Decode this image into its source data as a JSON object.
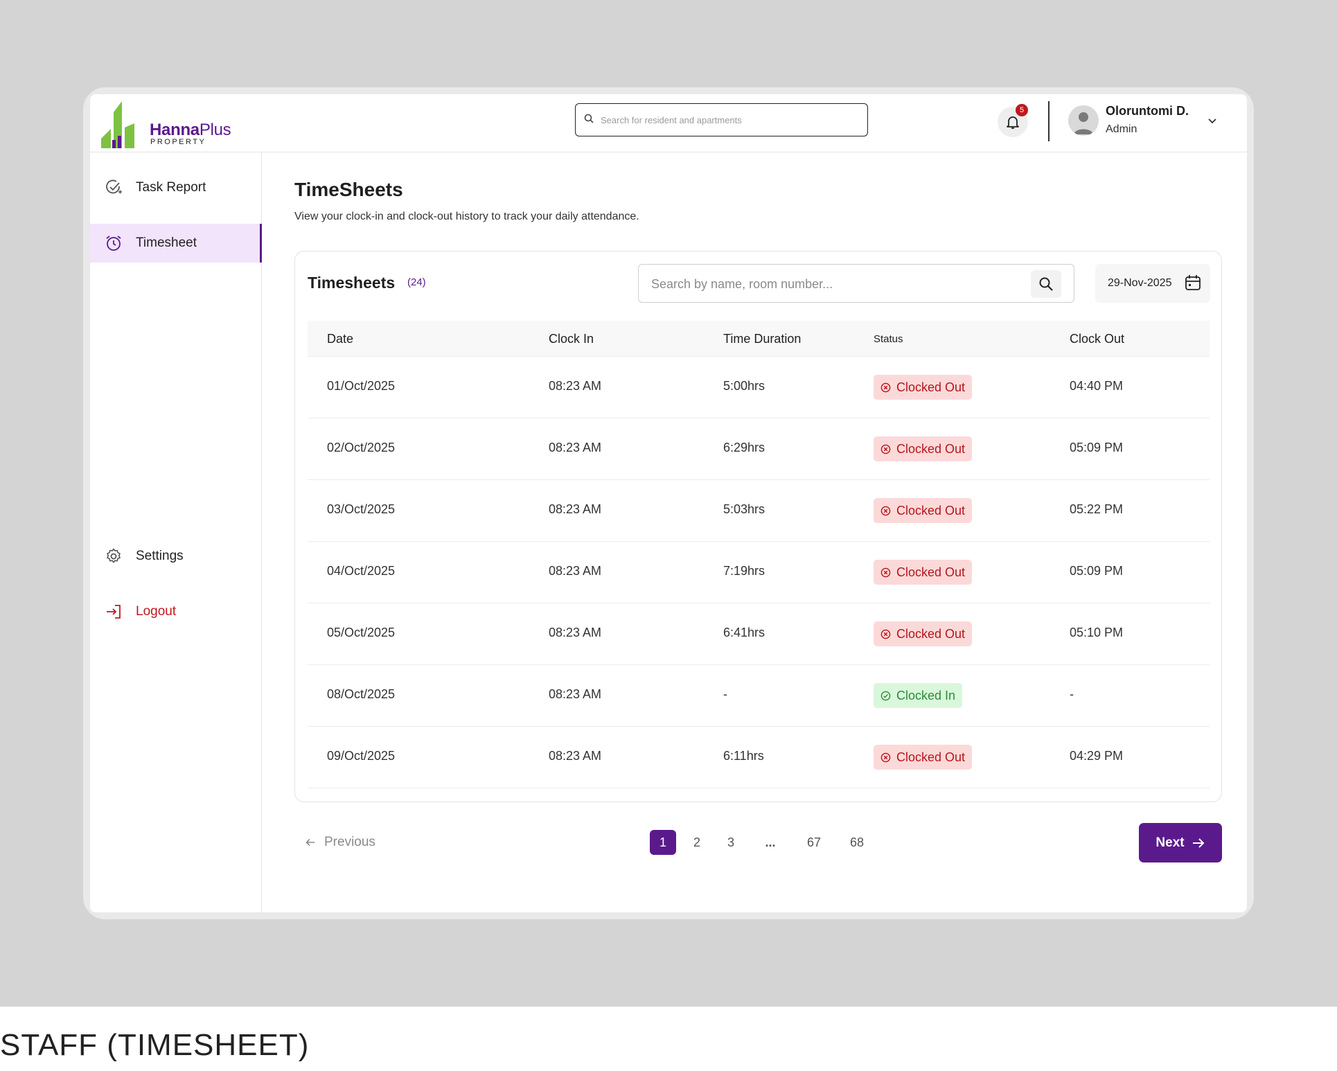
{
  "brand": {
    "name_bold": "Hanna",
    "name_rest": "Plus",
    "sub": "PROPERTY"
  },
  "header": {
    "search_placeholder": "Search for resident and apartments",
    "notification_count": "5",
    "user_name": "Oloruntomi D.",
    "user_role": "Admin"
  },
  "sidebar": {
    "items": [
      {
        "label": "Task Report",
        "icon": "task-check-icon"
      },
      {
        "label": "Timesheet",
        "icon": "alarm-clock-icon",
        "active": true
      }
    ],
    "bottom": [
      {
        "label": "Settings",
        "icon": "gear-icon"
      },
      {
        "label": "Logout",
        "icon": "logout-icon"
      }
    ]
  },
  "page": {
    "title": "TimeSheets",
    "subtitle": "View your clock-in and clock-out history to track your daily attendance."
  },
  "table": {
    "title": "Timesheets",
    "count": "(24)",
    "search_placeholder": "Search by name, room number...",
    "date_filter": "29-Nov-2025",
    "columns": [
      "Date",
      "Clock In",
      "Time Duration",
      "Status",
      "Clock Out"
    ],
    "rows": [
      {
        "date": "01/Oct/2025",
        "clock_in": "08:23 AM",
        "duration": "5:00hrs",
        "status": "Clocked Out",
        "clock_out": "04:40 PM"
      },
      {
        "date": "02/Oct/2025",
        "clock_in": "08:23 AM",
        "duration": "6:29hrs",
        "status": "Clocked Out",
        "clock_out": "05:09 PM"
      },
      {
        "date": "03/Oct/2025",
        "clock_in": "08:23 AM",
        "duration": "5:03hrs",
        "status": "Clocked Out",
        "clock_out": "05:22 PM"
      },
      {
        "date": "04/Oct/2025",
        "clock_in": "08:23 AM",
        "duration": "7:19hrs",
        "status": "Clocked Out",
        "clock_out": "05:09 PM"
      },
      {
        "date": "05/Oct/2025",
        "clock_in": "08:23 AM",
        "duration": "6:41hrs",
        "status": "Clocked Out",
        "clock_out": "05:10 PM"
      },
      {
        "date": "08/Oct/2025",
        "clock_in": "08:23 AM",
        "duration": "-",
        "status": "Clocked In",
        "clock_out": "-"
      },
      {
        "date": "09/Oct/2025",
        "clock_in": "08:23 AM",
        "duration": "6:11hrs",
        "status": "Clocked Out",
        "clock_out": "04:29 PM"
      }
    ]
  },
  "pagination": {
    "previous": "Previous",
    "pages": [
      "1",
      "2",
      "3",
      "...",
      "67",
      "68"
    ],
    "current": "1",
    "next": "Next"
  },
  "caption": "STAFF (TIMESHEET)",
  "colors": {
    "primary": "#5b1a8c",
    "danger": "#c0181f",
    "success": "#2e8b3a",
    "logo_green": "#7dc242"
  }
}
